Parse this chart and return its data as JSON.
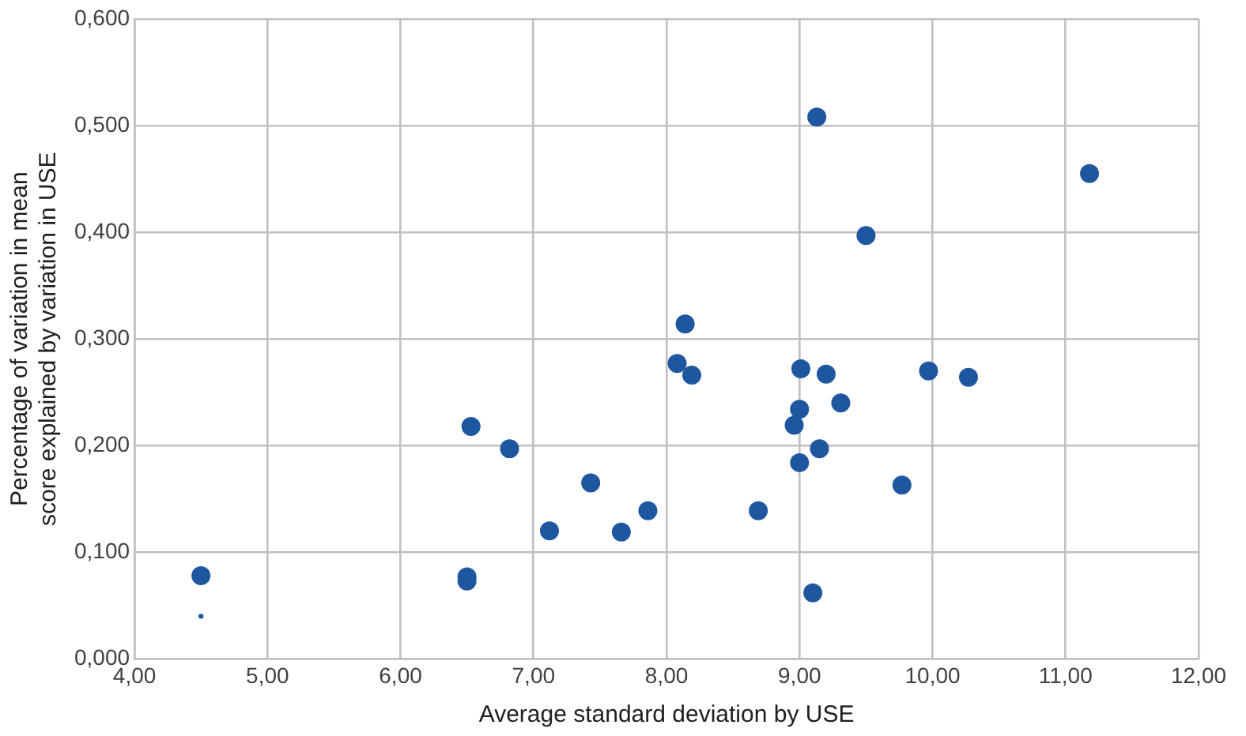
{
  "chart_data": {
    "type": "scatter",
    "xlabel": "Average standard deviation by USE",
    "ylabel": "Percentage of variation in mean score explained by variation in USE",
    "xlim": [
      4,
      12
    ],
    "xticks": [
      {
        "value": 4,
        "label": "4,00"
      },
      {
        "value": 5,
        "label": "5,00"
      },
      {
        "value": 6,
        "label": "6,00"
      },
      {
        "value": 7,
        "label": "7,00"
      },
      {
        "value": 8,
        "label": "8,00"
      },
      {
        "value": 9,
        "label": "9,00"
      },
      {
        "value": 10,
        "label": "10,00"
      },
      {
        "value": 11,
        "label": "11,00"
      },
      {
        "value": 12,
        "label": "12,00"
      }
    ],
    "ylim": [
      0,
      0.6
    ],
    "yticks": [
      {
        "value": 0,
        "label": "0,000"
      },
      {
        "value": 0.1,
        "label": "0,100"
      },
      {
        "value": 0.2,
        "label": "0,200"
      },
      {
        "value": 0.3,
        "label": "0,300"
      },
      {
        "value": 0.4,
        "label": "0,400"
      },
      {
        "value": 0.5,
        "label": "0,500"
      },
      {
        "value": 0.6,
        "label": "0,600"
      }
    ],
    "grid": true,
    "legend": false,
    "marker": "circle",
    "series": [
      {
        "color": "#1f56a0",
        "x": [
          4.5,
          6.5,
          6.5,
          6.53,
          6.82,
          7.12,
          7.43,
          7.66,
          7.86,
          8.08,
          8.14,
          8.19,
          9.13,
          11.18,
          9.5,
          9.01,
          9.2,
          9.97,
          10.27,
          9.31,
          9.0,
          8.96,
          9.15,
          9.0,
          9.77,
          8.69,
          9.1
        ],
        "values": [
          0.078,
          0.077,
          0.073,
          0.218,
          0.197,
          0.12,
          0.165,
          0.119,
          0.139,
          0.277,
          0.314,
          0.266,
          0.508,
          0.455,
          0.397,
          0.272,
          0.267,
          0.27,
          0.264,
          0.24,
          0.234,
          0.219,
          0.197,
          0.184,
          0.163,
          0.139,
          0.062
        ]
      },
      {
        "color": "#1f56a0",
        "x": [
          4.5
        ],
        "values": [
          0.04
        ]
      }
    ]
  }
}
